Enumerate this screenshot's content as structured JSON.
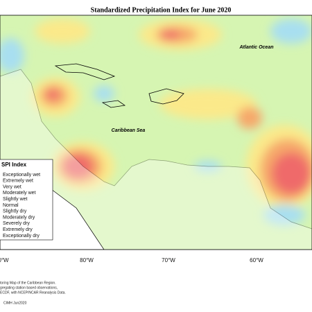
{
  "header": {
    "title": "Standardized Precipitation Index for June 2020"
  },
  "map": {
    "labels": [
      "Atlantic Ocean",
      "Caribbean Sea"
    ]
  },
  "legend": {
    "title": "SPI Index",
    "items": [
      "Exceptionally wet",
      "Extremely wet",
      "Very wet",
      "Moderately wet",
      "Slightly wet",
      "Normal",
      "Slightly dry",
      "Moderately dry",
      "Severely dry",
      "Extremely dry",
      "Exceptionally dry"
    ]
  },
  "axis": {
    "lon_labels": [
      "0°W",
      "80°W",
      "70°W",
      "60°W"
    ]
  },
  "footnote": {
    "lines": [
      "toring Map of the Caribbean Region.",
      "gregating station based observations,",
      "ECDF, with NCEP/NCAR Reanalysis Data."
    ],
    "credit": "CIMH Jun2020"
  }
}
